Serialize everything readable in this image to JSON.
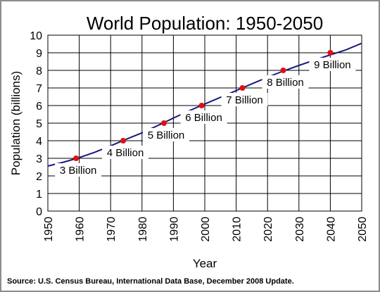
{
  "chart_data": {
    "type": "line",
    "title": "World Population: 1950-2050",
    "xlabel": "Year",
    "ylabel": "Population (billions)",
    "xlim": [
      1950,
      2050
    ],
    "ylim": [
      0,
      10
    ],
    "x_ticks": [
      "1950",
      "1960",
      "1970",
      "1980",
      "1990",
      "2000",
      "2010",
      "2020",
      "2030",
      "2040",
      "2050"
    ],
    "y_ticks": [
      "0",
      "1",
      "2",
      "3",
      "4",
      "5",
      "6",
      "7",
      "8",
      "9",
      "10"
    ],
    "grid": true,
    "line_color": "#1a1a80",
    "marker_color": "#e01010",
    "series": [
      {
        "x": [
          1950,
          1955,
          1960,
          1965,
          1970,
          1975,
          1980,
          1985,
          1990,
          1995,
          2000,
          2005,
          2010,
          2015,
          2020,
          2025,
          2030,
          2035,
          2040,
          2045,
          2050
        ],
        "values": [
          2.56,
          2.78,
          3.04,
          3.35,
          3.71,
          4.09,
          4.45,
          4.86,
          5.29,
          5.7,
          6.09,
          6.47,
          6.85,
          7.23,
          7.61,
          7.96,
          8.28,
          8.59,
          8.88,
          9.17,
          9.54
        ]
      }
    ],
    "annotations": [
      {
        "label": "3 Billion",
        "x": 1959,
        "y": 3
      },
      {
        "label": "4 Billion",
        "x": 1974,
        "y": 4
      },
      {
        "label": "5 Billion",
        "x": 1987,
        "y": 5
      },
      {
        "label": "6 Billion",
        "x": 1999,
        "y": 6
      },
      {
        "label": "7 Billion",
        "x": 2012,
        "y": 7
      },
      {
        "label": "8 Billion",
        "x": 2025,
        "y": 8
      },
      {
        "label": "9 Billion",
        "x": 2040,
        "y": 9
      }
    ]
  },
  "source": "Source: U.S. Census Bureau, International Data Base, December 2008 Update."
}
